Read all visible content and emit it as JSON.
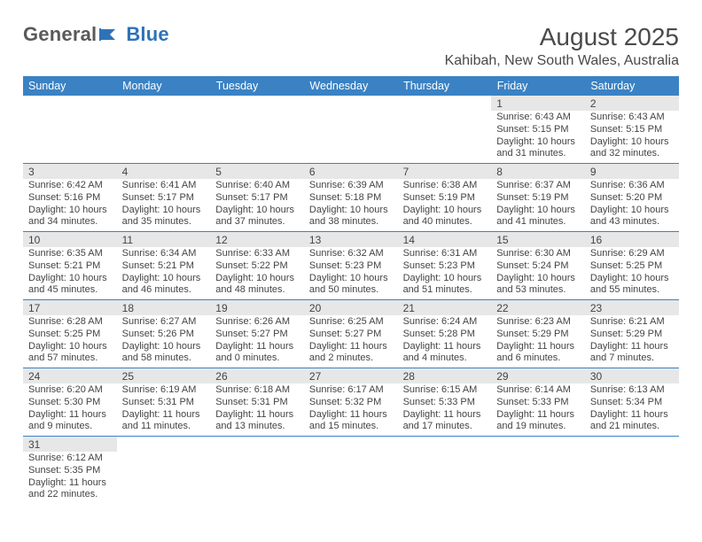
{
  "brand": {
    "name_dark": "General",
    "name_blue": "Blue"
  },
  "title": "August 2025",
  "location": "Kahibah, New South Wales, Australia",
  "colors": {
    "header_bg": "#3a82c4",
    "header_fg": "#ffffff",
    "daynum_bg": "#e7e7e7",
    "rule": "#3a82c4",
    "text": "#444444",
    "page_bg": "#ffffff",
    "brand_blue": "#2f72b8",
    "brand_dark": "#5a5a5a"
  },
  "fonts": {
    "title_pt": 28,
    "location_pt": 16,
    "dayhead_pt": 12.5,
    "body_pt": 11
  },
  "daynames": [
    "Sunday",
    "Monday",
    "Tuesday",
    "Wednesday",
    "Thursday",
    "Friday",
    "Saturday"
  ],
  "weeks": [
    [
      null,
      null,
      null,
      null,
      null,
      {
        "n": "1",
        "rise": "6:43 AM",
        "set": "5:15 PM",
        "len": "10 hours and 31 minutes."
      },
      {
        "n": "2",
        "rise": "6:43 AM",
        "set": "5:15 PM",
        "len": "10 hours and 32 minutes."
      }
    ],
    [
      {
        "n": "3",
        "rise": "6:42 AM",
        "set": "5:16 PM",
        "len": "10 hours and 34 minutes."
      },
      {
        "n": "4",
        "rise": "6:41 AM",
        "set": "5:17 PM",
        "len": "10 hours and 35 minutes."
      },
      {
        "n": "5",
        "rise": "6:40 AM",
        "set": "5:17 PM",
        "len": "10 hours and 37 minutes."
      },
      {
        "n": "6",
        "rise": "6:39 AM",
        "set": "5:18 PM",
        "len": "10 hours and 38 minutes."
      },
      {
        "n": "7",
        "rise": "6:38 AM",
        "set": "5:19 PM",
        "len": "10 hours and 40 minutes."
      },
      {
        "n": "8",
        "rise": "6:37 AM",
        "set": "5:19 PM",
        "len": "10 hours and 41 minutes."
      },
      {
        "n": "9",
        "rise": "6:36 AM",
        "set": "5:20 PM",
        "len": "10 hours and 43 minutes."
      }
    ],
    [
      {
        "n": "10",
        "rise": "6:35 AM",
        "set": "5:21 PM",
        "len": "10 hours and 45 minutes."
      },
      {
        "n": "11",
        "rise": "6:34 AM",
        "set": "5:21 PM",
        "len": "10 hours and 46 minutes."
      },
      {
        "n": "12",
        "rise": "6:33 AM",
        "set": "5:22 PM",
        "len": "10 hours and 48 minutes."
      },
      {
        "n": "13",
        "rise": "6:32 AM",
        "set": "5:23 PM",
        "len": "10 hours and 50 minutes."
      },
      {
        "n": "14",
        "rise": "6:31 AM",
        "set": "5:23 PM",
        "len": "10 hours and 51 minutes."
      },
      {
        "n": "15",
        "rise": "6:30 AM",
        "set": "5:24 PM",
        "len": "10 hours and 53 minutes."
      },
      {
        "n": "16",
        "rise": "6:29 AM",
        "set": "5:25 PM",
        "len": "10 hours and 55 minutes."
      }
    ],
    [
      {
        "n": "17",
        "rise": "6:28 AM",
        "set": "5:25 PM",
        "len": "10 hours and 57 minutes."
      },
      {
        "n": "18",
        "rise": "6:27 AM",
        "set": "5:26 PM",
        "len": "10 hours and 58 minutes."
      },
      {
        "n": "19",
        "rise": "6:26 AM",
        "set": "5:27 PM",
        "len": "11 hours and 0 minutes."
      },
      {
        "n": "20",
        "rise": "6:25 AM",
        "set": "5:27 PM",
        "len": "11 hours and 2 minutes."
      },
      {
        "n": "21",
        "rise": "6:24 AM",
        "set": "5:28 PM",
        "len": "11 hours and 4 minutes."
      },
      {
        "n": "22",
        "rise": "6:23 AM",
        "set": "5:29 PM",
        "len": "11 hours and 6 minutes."
      },
      {
        "n": "23",
        "rise": "6:21 AM",
        "set": "5:29 PM",
        "len": "11 hours and 7 minutes."
      }
    ],
    [
      {
        "n": "24",
        "rise": "6:20 AM",
        "set": "5:30 PM",
        "len": "11 hours and 9 minutes."
      },
      {
        "n": "25",
        "rise": "6:19 AM",
        "set": "5:31 PM",
        "len": "11 hours and 11 minutes."
      },
      {
        "n": "26",
        "rise": "6:18 AM",
        "set": "5:31 PM",
        "len": "11 hours and 13 minutes."
      },
      {
        "n": "27",
        "rise": "6:17 AM",
        "set": "5:32 PM",
        "len": "11 hours and 15 minutes."
      },
      {
        "n": "28",
        "rise": "6:15 AM",
        "set": "5:33 PM",
        "len": "11 hours and 17 minutes."
      },
      {
        "n": "29",
        "rise": "6:14 AM",
        "set": "5:33 PM",
        "len": "11 hours and 19 minutes."
      },
      {
        "n": "30",
        "rise": "6:13 AM",
        "set": "5:34 PM",
        "len": "11 hours and 21 minutes."
      }
    ],
    [
      {
        "n": "31",
        "rise": "6:12 AM",
        "set": "5:35 PM",
        "len": "11 hours and 22 minutes."
      },
      null,
      null,
      null,
      null,
      null,
      null
    ]
  ],
  "labels": {
    "sunrise": "Sunrise: ",
    "sunset": "Sunset: ",
    "daylight": "Daylight: "
  }
}
